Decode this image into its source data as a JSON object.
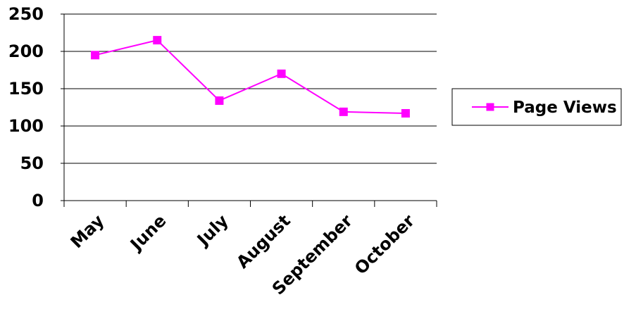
{
  "chart_data": {
    "type": "line",
    "categories": [
      "May",
      "June",
      "July",
      "August",
      "September",
      "October"
    ],
    "series": [
      {
        "name": "Page Views",
        "values": [
          195,
          215,
          134,
          170,
          119,
          117
        ],
        "color": "#ff00ff",
        "marker": "square"
      }
    ],
    "title": "",
    "xlabel": "",
    "ylabel": "",
    "ylim": [
      0,
      250
    ],
    "yticks": [
      0,
      50,
      100,
      150,
      200,
      250
    ],
    "grid": true,
    "legend_position": "right"
  }
}
